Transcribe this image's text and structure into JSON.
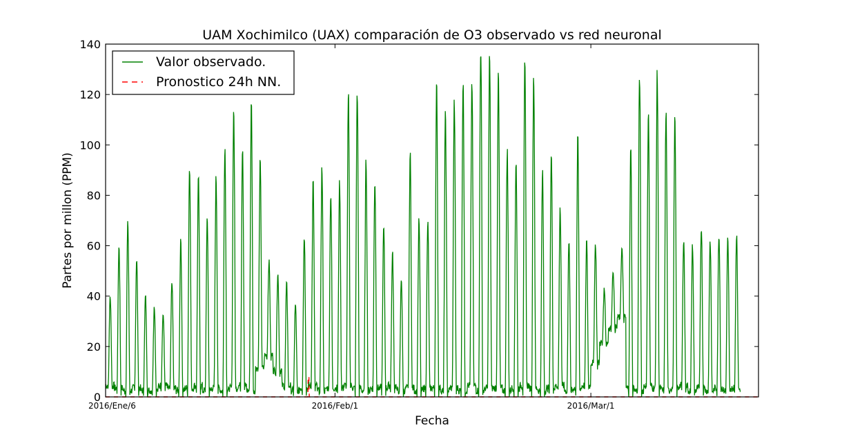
{
  "chart_data": {
    "type": "line",
    "title": "UAM Xochimilco (UAX) comparación de O3 observado vs red neuronal",
    "xlabel": "Fecha",
    "ylabel": "Partes por millon (PPM)",
    "xlim": [
      "2016-01-06",
      "2016-03-20"
    ],
    "ylim": [
      0,
      140
    ],
    "yticks": [
      0,
      20,
      40,
      60,
      80,
      100,
      120,
      140
    ],
    "xticks": [
      {
        "label": "2016/Ene/6",
        "date": "2016-01-06"
      },
      {
        "label": "2016/Feb/1",
        "date": "2016-02-01"
      },
      {
        "label": "2016/Mar/1",
        "date": "2016-03-01"
      }
    ],
    "grid": false,
    "legend_position": "top-left",
    "series": [
      {
        "name": "Valor observado.",
        "color": "#008000",
        "style": "solid",
        "daily_peaks": [
          40,
          60,
          69,
          55,
          40,
          36,
          33,
          46,
          62,
          92,
          86,
          70,
          87,
          100,
          114,
          100,
          116,
          93,
          54,
          49,
          45,
          37,
          64,
          86,
          91,
          81,
          85,
          119,
          121,
          93,
          86,
          67,
          57,
          47,
          96,
          70,
          69,
          123,
          112,
          117,
          127,
          125,
          140,
          135,
          127,
          98,
          94,
          131,
          128,
          89,
          96,
          75,
          63,
          102,
          62,
          61,
          43,
          50,
          59,
          98,
          128,
          112,
          128,
          113,
          110,
          63,
          60,
          68,
          62,
          65,
          63,
          65
        ],
        "daily_troughs": [
          3,
          2,
          1,
          2,
          1,
          1,
          3,
          2,
          1,
          2,
          3,
          1,
          2,
          1,
          2,
          3,
          1,
          10,
          15,
          9,
          3,
          1,
          2,
          3,
          1,
          2,
          2,
          3,
          2,
          1,
          2,
          2,
          3,
          1,
          2,
          1,
          2,
          2,
          1,
          2,
          1,
          3,
          1,
          2,
          2,
          1,
          2,
          3,
          2,
          1,
          2,
          3,
          1,
          2,
          3,
          12,
          20,
          26,
          30,
          2,
          1,
          3,
          2,
          1,
          2,
          3,
          1,
          2,
          1,
          2,
          1,
          2
        ]
      },
      {
        "name": "Pronostico 24h NN.",
        "color": "#ff0000",
        "style": "dashed",
        "baseline": 0,
        "spikes": [
          {
            "date": "2016-01-29",
            "value": 8
          }
        ]
      }
    ]
  }
}
